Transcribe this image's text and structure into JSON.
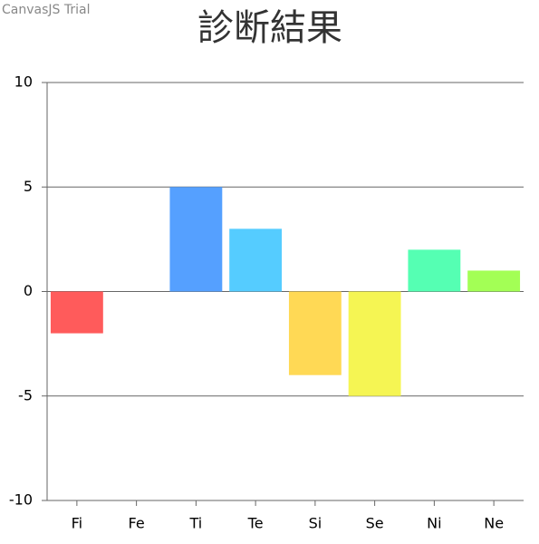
{
  "chart_data": {
    "type": "bar",
    "title": "診断結果",
    "watermark": "CanvasJS Trial",
    "categories": [
      "Fi",
      "Fe",
      "Ti",
      "Te",
      "Si",
      "Se",
      "Ni",
      "Ne"
    ],
    "values": [
      -2,
      0,
      5,
      3,
      -4,
      -5,
      2,
      1
    ],
    "colors": [
      "#ff5b5b",
      "#ff9955",
      "#55a0ff",
      "#55ccff",
      "#ffd955",
      "#f5f553",
      "#55ffb3",
      "#a3ff55"
    ],
    "ylim": [
      -10,
      10
    ],
    "yticks": [
      -10,
      -5,
      0,
      5,
      10
    ],
    "grid": true
  }
}
